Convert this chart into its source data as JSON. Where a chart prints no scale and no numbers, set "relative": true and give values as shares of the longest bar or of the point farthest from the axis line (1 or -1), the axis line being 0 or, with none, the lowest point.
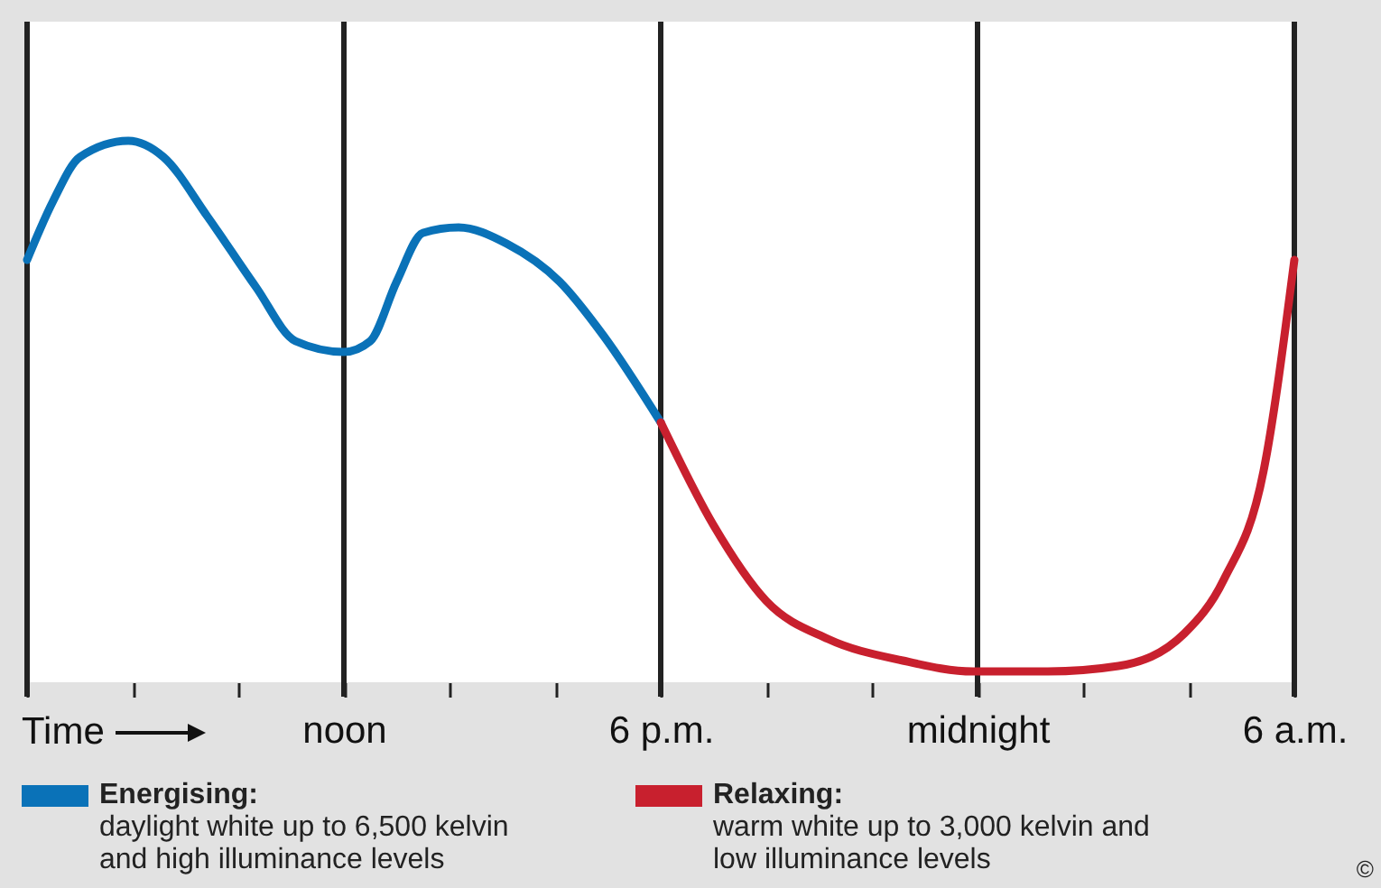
{
  "chart_data": {
    "type": "line",
    "relative": true,
    "xlabel": "Time",
    "xlim": [
      "--01-01T06:00",
      "--01-02T06:00"
    ],
    "xticks": [
      {
        "value": "--01-01T06:00",
        "label": null
      },
      {
        "value": "--01-01T08:00",
        "label": null
      },
      {
        "value": "--01-01T10:00",
        "label": null
      },
      {
        "value": "--01-01T12:00",
        "label": "noon"
      },
      {
        "value": "--01-01T14:00",
        "label": null
      },
      {
        "value": "--01-01T16:00",
        "label": null
      },
      {
        "value": "--01-01T18:00",
        "label": "6 p.m."
      },
      {
        "value": "--01-01T20:00",
        "label": null
      },
      {
        "value": "--01-01T22:00",
        "label": null
      },
      {
        "value": "--01-02T00:00",
        "label": "midnight"
      },
      {
        "value": "--01-02T02:00",
        "label": null
      },
      {
        "value": "--01-02T04:00",
        "label": null
      },
      {
        "value": "--01-02T06:00",
        "label": "6 a.m."
      }
    ],
    "grid": "x",
    "legend": "bottom",
    "line_style": "solid",
    "series": [
      {
        "name": "Energising:",
        "color": "#0a72b8",
        "x": [
          "--01-01T06:00",
          "--01-01T06:30",
          "--01-01T07:00",
          "--01-01T07:55",
          "--01-01T08:35",
          "--01-01T09:25",
          "--01-01T10:20",
          "--01-01T11:05",
          "--01-01T12:00",
          "--01-01T12:30",
          "--01-01T13:00",
          "--01-01T13:30",
          "--01-01T14:10",
          "--01-01T15:05",
          "--01-01T16:05",
          "--01-01T16:55",
          "--01-01T18:00"
        ],
        "values": [
          0.78,
          0.89,
          0.97,
          1,
          0.97,
          0.86,
          0.73,
          0.63,
          0.61,
          0.63,
          0.74,
          0.83,
          0.84,
          0.81,
          0.74,
          0.64,
          0.48
        ]
      },
      {
        "name": "Relaxing:",
        "color": "#c8202e",
        "x": [
          "--01-01T18:00",
          "--01-01T19:00",
          "--01-01T20:00",
          "--01-01T21:10",
          "--01-01T22:35",
          "--01-01T23:55",
          "--01-02T01:20",
          "--01-02T02:40",
          "--01-02T03:55",
          "--01-02T04:40",
          "--01-02T05:25",
          "--01-02T06:00"
        ],
        "values": [
          0.48,
          0.29,
          0.15,
          0.08,
          0.04,
          0.02,
          0.02,
          0.03,
          0.09,
          0.19,
          0.39,
          0.78
        ]
      }
    ],
    "annotations": [
      "daylight white up to 6,500 kelvin and high illuminance levels",
      "warm white up to 3,000 kelvin and low illuminance levels",
      "©"
    ]
  }
}
